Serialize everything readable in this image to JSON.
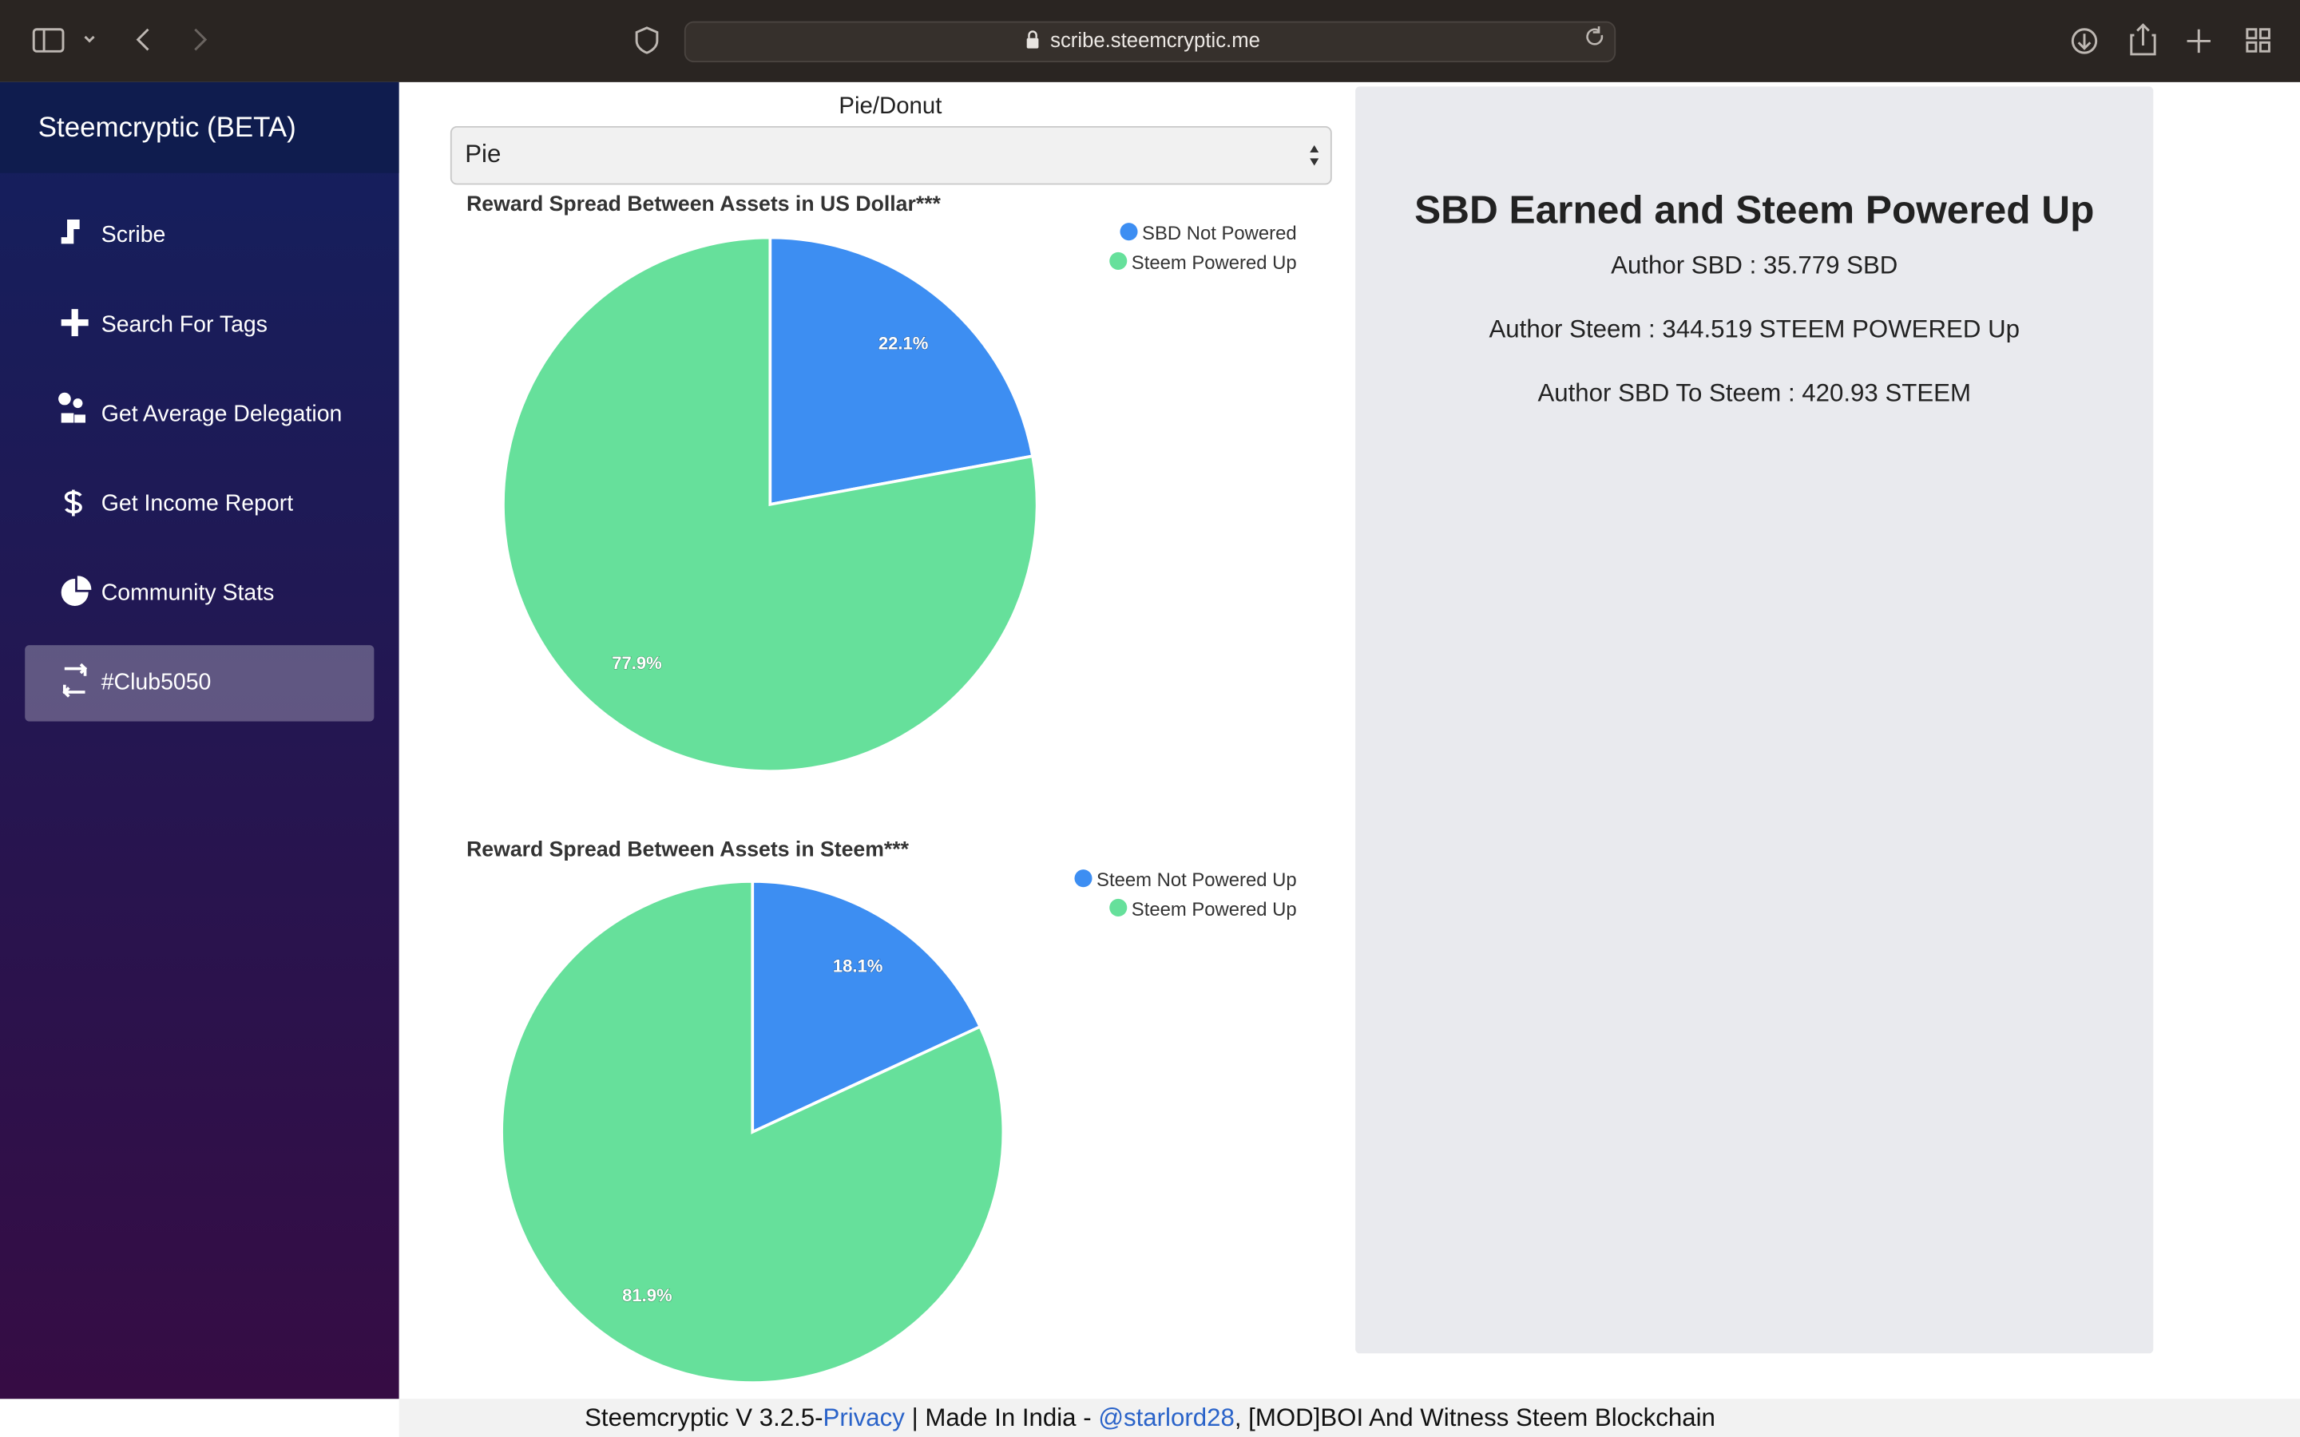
{
  "browser": {
    "url": "scribe.steemcryptic.me"
  },
  "sidebar": {
    "title": "Steemcryptic (BETA)",
    "items": [
      "Scribe",
      "Search For Tags",
      "Get Average Delegation",
      "Get Income Report",
      "Community Stats",
      "#Club5050"
    ]
  },
  "selector": {
    "label": "Pie/Donut",
    "value": "Pie"
  },
  "chart_data": [
    {
      "type": "pie",
      "title": "Reward Spread Between Assets in US Dollar***",
      "categories": [
        "SBD Not Powered",
        "Steem Powered Up"
      ],
      "values": [
        22.1,
        77.9
      ],
      "value_labels": [
        "22.1%",
        "77.9%"
      ],
      "colors": [
        "#3d8ef2",
        "#66e09b"
      ],
      "legend": "top-right"
    },
    {
      "type": "pie",
      "title": "Reward Spread Between Assets in Steem***",
      "categories": [
        "Steem Not Powered Up",
        "Steem Powered Up"
      ],
      "values": [
        18.1,
        81.9
      ],
      "value_labels": [
        "18.1%",
        "81.9%"
      ],
      "colors": [
        "#3d8ef2",
        "#66e09b"
      ],
      "legend": "top-right"
    }
  ],
  "panel": {
    "title": "SBD Earned and Steem Powered Up",
    "lines": [
      "Author SBD : 35.779 SBD",
      "Author Steem : 344.519 STEEM POWERED Up",
      "Author SBD To Steem : 420.93 STEEM"
    ]
  },
  "footer": {
    "text1": "Steemcryptic V 3.2.5-",
    "privacy": "Privacy",
    "text2": "| Made In India -",
    "author": "@starlord28",
    "text3": ", [MOD]BOI And Witness Steem Blockchain"
  }
}
